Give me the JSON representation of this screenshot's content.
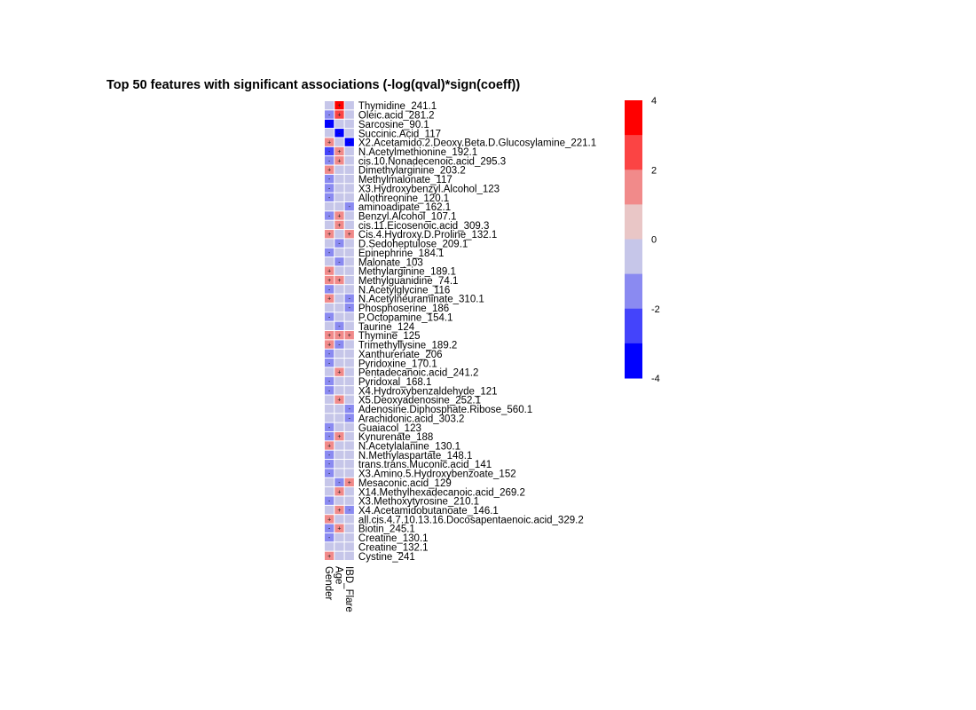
{
  "chart_data": {
    "type": "heatmap",
    "title": "Top 50 features with significant associations (-log(qval)*sign(coeff))",
    "columns": [
      "Gender",
      "Age",
      "IBD_Flare"
    ],
    "column_labels": [
      "Gender",
      "Age",
      "IBD_Flare"
    ],
    "rows": [
      "Thymidine_241.1",
      "Oleic.acid_281.2",
      "Sarcosine_90.1",
      "Succinic.Acid_117",
      "X2.Acetamido.2.Deoxy.Beta.D.Glucosylamine_221.1",
      "N.Acetylmethionine_192.1",
      "cis.10.Nonadecenoic.acid_295.3",
      "Dimethylarginine_203.2",
      "Methylmalonate_117",
      "X3.Hydroxybenzyl.Alcohol_123",
      "Allothreonine_120.1",
      "aminoadipate_162.1",
      "Benzyl.Alcohol_107.1",
      "cis.11.Eicosenoic.acid_309.3",
      "Cis.4.Hydroxy.D.Proline_132.1",
      "D.Sedoheptulose_209.1",
      "Epinephrine_184.1",
      "Malonate_103",
      "Methylarginine_189.1",
      "Methylguanidine_74.1",
      "N.Acetylglycine_116",
      "N.Acetylneuraminate_310.1",
      "Phosphoserine_186",
      "P.Octopamine_154.1",
      "Taurine_124",
      "Thymine_125",
      "Trimethyllysine_189.2",
      "Xanthurenate_206",
      "Pyridoxine_170.1",
      "Pentadecanoic.acid_241.2",
      "Pyridoxal_168.1",
      "X4.Hydroxybenzaldehyde_121",
      "X5.Deoxyadenosine_252.1",
      "Adenosine.Diphosphate.Ribose_560.1",
      "Arachidonic.acid_303.2",
      "Guaiacol_123",
      "Kynurenate_188",
      "N.Acetylalanine_130.1",
      "N.Methylaspartate_148.1",
      "trans.trans.Muconic.acid_141",
      "X3.Amino.5.Hydroxybenzoate_152",
      "Mesaconic.acid_129",
      "X14.Methylhexadecanoic.acid_269.2",
      "X3.Methoxytyrosine_210.1",
      "X4.Acetamidobutanoate_146.1",
      "all.cis.4.7.10.13.16.Docosapentaenoic.acid_329.2",
      "Biotin_245.1",
      "Creatine_130.1",
      "Creatine_132.1",
      "Cystine_241"
    ],
    "values": [
      [
        0,
        3.5,
        0
      ],
      [
        -1.5,
        2.5,
        0
      ],
      [
        -3.5,
        0,
        0
      ],
      [
        0,
        -3.5,
        0
      ],
      [
        1.5,
        0,
        -3.5
      ],
      [
        -3,
        1.5,
        0
      ],
      [
        -2,
        1.5,
        0
      ],
      [
        1.5,
        0,
        0
      ],
      [
        -1.5,
        0,
        0
      ],
      [
        -1.5,
        0,
        0
      ],
      [
        -1.5,
        0,
        0
      ],
      [
        0,
        0,
        -1.5
      ],
      [
        -1.5,
        1.5,
        0
      ],
      [
        0,
        1.5,
        0
      ],
      [
        1.5,
        0,
        1.5
      ],
      [
        0,
        -1.5,
        0
      ],
      [
        -1.5,
        0,
        0
      ],
      [
        0,
        -1.5,
        0
      ],
      [
        1.5,
        0,
        0
      ],
      [
        1.5,
        1.5,
        0
      ],
      [
        -1.5,
        0,
        0
      ],
      [
        1.5,
        0,
        -1.5
      ],
      [
        0,
        0,
        -1.5
      ],
      [
        -1.5,
        0,
        0
      ],
      [
        0,
        -1.5,
        0
      ],
      [
        1.5,
        1.5,
        1.5
      ],
      [
        1.5,
        -1.5,
        0
      ],
      [
        -1.5,
        0,
        0
      ],
      [
        -1.5,
        0,
        0
      ],
      [
        0,
        1.5,
        0
      ],
      [
        -1.5,
        0,
        0
      ],
      [
        -1.5,
        0,
        0
      ],
      [
        0,
        1.5,
        0
      ],
      [
        0,
        0,
        -1.5
      ],
      [
        0,
        0,
        -1.5
      ],
      [
        -1.5,
        0,
        0
      ],
      [
        -1.5,
        1.5,
        0
      ],
      [
        1.5,
        0,
        0
      ],
      [
        -1.5,
        0,
        0
      ],
      [
        -1.5,
        0,
        0
      ],
      [
        -1.5,
        0,
        0
      ],
      [
        0,
        -1.5,
        1.5
      ],
      [
        0,
        1.5,
        0
      ],
      [
        -1.5,
        0,
        0
      ],
      [
        0,
        1.5,
        -1.5
      ],
      [
        1.5,
        0,
        0
      ],
      [
        -1.5,
        1.5,
        0
      ],
      [
        -1.5,
        0,
        0
      ],
      [
        0,
        0,
        0
      ],
      [
        1.5,
        0,
        0
      ]
    ],
    "legend": {
      "ticks": [
        "4",
        "2",
        "0",
        "-2",
        "-4"
      ],
      "range": [
        -4,
        4
      ],
      "bins": [
        {
          "from": 3,
          "to": 4,
          "color": "#ff0000"
        },
        {
          "from": 2,
          "to": 3,
          "color": "#fb4444"
        },
        {
          "from": 1,
          "to": 2,
          "color": "#f18a8a"
        },
        {
          "from": 0,
          "to": 1,
          "color": "#e9c6c6"
        },
        {
          "from": -1,
          "to": 0,
          "color": "#c6c6e9"
        },
        {
          "from": -2,
          "to": -1,
          "color": "#8a8af1"
        },
        {
          "from": -3,
          "to": -2,
          "color": "#4444fb"
        },
        {
          "from": -4,
          "to": -3,
          "color": "#0000ff"
        }
      ],
      "placement": "right"
    },
    "cell_symbols": {
      "positive": "+",
      "negative": "-"
    }
  }
}
